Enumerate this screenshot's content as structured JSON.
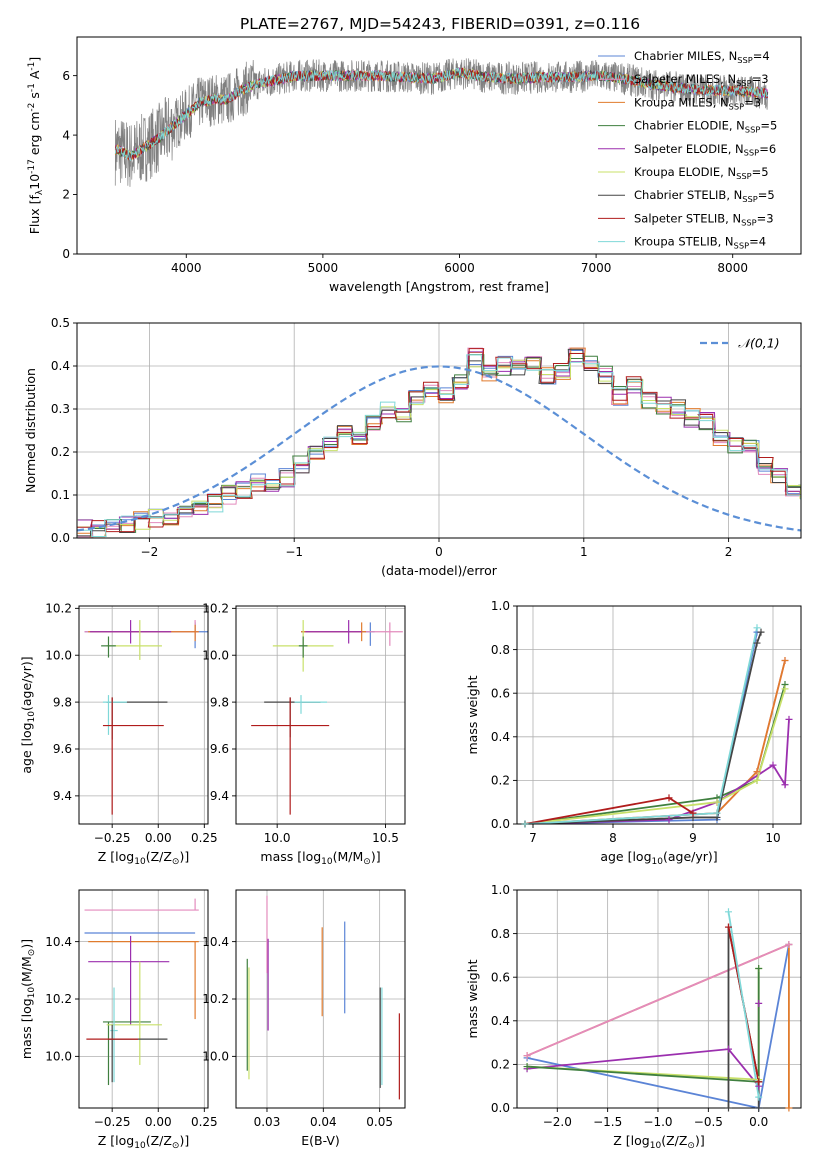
{
  "title": "PLATE=2767, MJD=54243, FIBERID=0391, z=0.116",
  "colors": {
    "Chabrier MILES": "#5b84d6",
    "Salpeter MILES": "#e38bbd",
    "Kroupa MILES": "#e07b2d",
    "Chabrier ELODIE": "#3f7f3f",
    "Salpeter ELODIE": "#9b2fae",
    "Kroupa ELODIE": "#c8e06a",
    "Chabrier STELIB": "#454545",
    "Salpeter STELIB": "#b01c1c",
    "Kroupa STELIB": "#7fd8d8",
    "gauss": "#5b8fd6",
    "grid": "#b0b0b0"
  },
  "chart_data": [
    {
      "id": "spectrum",
      "type": "line",
      "xlabel": "wavelength [Angstrom, rest frame]",
      "ylabel": "Flux [f$_\\lambda$10$^{-17}$ erg cm$^{-2}$ s$^{-1}$ A$^{-1}$]",
      "xlim": [
        3200,
        8500
      ],
      "ylim": [
        0,
        7.3
      ],
      "xticks": [
        4000,
        5000,
        6000,
        7000,
        8000
      ],
      "yticks": [
        0,
        2,
        4,
        6
      ],
      "grid": false,
      "legend_position": "top-right",
      "legend": [
        {
          "name": "Chabrier MILES",
          "nssp": "4"
        },
        {
          "name": "Salpeter MILES",
          "nssp": "3"
        },
        {
          "name": "Kroupa MILES",
          "nssp": "3"
        },
        {
          "name": "Chabrier ELODIE",
          "nssp": "5"
        },
        {
          "name": "Salpeter ELODIE",
          "nssp": "6"
        },
        {
          "name": "Kroupa ELODIE",
          "nssp": "5"
        },
        {
          "name": "Chabrier STELIB",
          "nssp": "5"
        },
        {
          "name": "Salpeter STELIB",
          "nssp": "3"
        },
        {
          "name": "Kroupa STELIB",
          "nssp": "4"
        }
      ],
      "data_color": "#808080",
      "continuum": {
        "x": [
          3500,
          3600,
          3700,
          3800,
          3900,
          4000,
          4100,
          4200,
          4300,
          4400,
          4500,
          4600,
          4700,
          4800,
          5000,
          5200,
          5400,
          5600,
          5800,
          6000,
          6200,
          6400,
          6600,
          6800,
          7000,
          7200,
          7400,
          7600,
          7800,
          8000,
          8250
        ],
        "y": [
          3.5,
          3.3,
          3.6,
          3.9,
          4.3,
          4.7,
          5.1,
          5.2,
          5.2,
          5.5,
          5.7,
          5.8,
          5.9,
          6.0,
          6.0,
          6.0,
          6.0,
          5.95,
          5.9,
          6.1,
          5.95,
          5.9,
          5.95,
          5.95,
          6.0,
          5.9,
          5.7,
          5.6,
          5.5,
          5.5,
          5.4
        ]
      }
    },
    {
      "id": "residuals",
      "type": "line",
      "xlabel": "(data-model)/error",
      "ylabel": "Normed distribution",
      "xlim": [
        -2.5,
        2.5
      ],
      "ylim": [
        0,
        0.5
      ],
      "xticks": [
        -2,
        -1,
        0,
        1,
        2
      ],
      "yticks": [
        0.0,
        0.1,
        0.2,
        0.3,
        0.4,
        0.5
      ],
      "grid": true,
      "legend": [
        "$\\mathcal{N}(0,1)$"
      ],
      "bin_width": 0.1,
      "hist_base": [
        0.02,
        0.025,
        0.03,
        0.035,
        0.04,
        0.045,
        0.05,
        0.055,
        0.07,
        0.08,
        0.1,
        0.11,
        0.13,
        0.12,
        0.14,
        0.17,
        0.2,
        0.22,
        0.24,
        0.23,
        0.27,
        0.3,
        0.28,
        0.33,
        0.34,
        0.33,
        0.36,
        0.42,
        0.38,
        0.4,
        0.4,
        0.41,
        0.38,
        0.39,
        0.42,
        0.41,
        0.38,
        0.33,
        0.36,
        0.32,
        0.31,
        0.3,
        0.28,
        0.27,
        0.23,
        0.22,
        0.21,
        0.17,
        0.15,
        0.12,
        0.11,
        0.09,
        0.08,
        0.07,
        0.06,
        0.07,
        0.06,
        0.05,
        0.04,
        0.05,
        0.04,
        0.035,
        0.04,
        0.03,
        0.03
      ]
    },
    {
      "id": "age-z",
      "type": "scatter",
      "xlabel": "Z [log$_{10}$($Z/Z_\\odot$)]",
      "ylabel": "age  [log$_{10}$($age/yr$)]",
      "xlim": [
        -0.43,
        0.27
      ],
      "ylim": [
        9.28,
        10.21
      ],
      "xticks": [
        -0.25,
        0.0,
        0.25
      ],
      "yticks": [
        9.4,
        9.6,
        9.8,
        10.0,
        10.2
      ],
      "grid": true,
      "errorbars": [
        {
          "s": "Chabrier MILES",
          "x": 0.2,
          "y": 10.1,
          "xl": 0.6,
          "xh": 0.2,
          "yl": 0.07,
          "yh": 0.04
        },
        {
          "s": "Salpeter MILES",
          "x": 0.2,
          "y": 10.1,
          "xl": 0.6,
          "xh": 0.02,
          "yl": 0.03,
          "yh": 0.05
        },
        {
          "s": "Kroupa MILES",
          "x": 0.2,
          "y": 10.1,
          "xl": 0.58,
          "xh": 0.02,
          "yl": 0.04,
          "yh": 0.03
        },
        {
          "s": "Salpeter ELODIE",
          "x": -0.15,
          "y": 10.1,
          "xl": 0.22,
          "xh": 0.22,
          "yl": 0.05,
          "yh": 0.05
        },
        {
          "s": "Kroupa ELODIE",
          "x": -0.1,
          "y": 10.04,
          "xl": 0.18,
          "xh": 0.12,
          "yl": 0.06,
          "yh": 0.11
        },
        {
          "s": "Chabrier ELODIE",
          "x": -0.27,
          "y": 10.04,
          "xl": 0.04,
          "xh": 0.04,
          "yl": 0.05,
          "yh": 0.04
        },
        {
          "s": "Chabrier STELIB",
          "x": -0.25,
          "y": 9.8,
          "xl": 0.03,
          "xh": 0.3,
          "yl": 0.16,
          "yh": 0.02
        },
        {
          "s": "Kroupa STELIB",
          "x": -0.27,
          "y": 9.8,
          "xl": 0.03,
          "xh": 0.1,
          "yl": 0.14,
          "yh": 0.03
        },
        {
          "s": "Salpeter STELIB",
          "x": -0.25,
          "y": 9.7,
          "xl": 0.05,
          "xh": 0.28,
          "yl": 0.38,
          "yh": 0.12
        }
      ]
    },
    {
      "id": "age-mass",
      "type": "scatter",
      "xlabel": "mass [log$_{10}$($M/M_\\odot$)]",
      "ylabel": "",
      "xlim": [
        9.81,
        10.59
      ],
      "ylim": [
        9.28,
        10.21
      ],
      "xticks": [
        10.0,
        10.5
      ],
      "yticks": [
        9.4,
        9.6,
        9.8,
        10.0,
        10.2
      ],
      "grid": true,
      "errorbars": [
        {
          "s": "Chabrier MILES",
          "x": 10.43,
          "y": 10.1,
          "xl": 0.32,
          "xh": 0.02,
          "yl": 0.06,
          "yh": 0.04
        },
        {
          "s": "Salpeter MILES",
          "x": 10.52,
          "y": 10.1,
          "xl": 0.4,
          "xh": 0.06,
          "yl": 0.06,
          "yh": 0.04
        },
        {
          "s": "Kroupa MILES",
          "x": 10.39,
          "y": 10.1,
          "xl": 0.28,
          "xh": 0.02,
          "yl": 0.04,
          "yh": 0.04
        },
        {
          "s": "Salpeter ELODIE",
          "x": 10.33,
          "y": 10.1,
          "xl": 0.2,
          "xh": 0.06,
          "yl": 0.05,
          "yh": 0.05
        },
        {
          "s": "Kroupa ELODIE",
          "x": 10.12,
          "y": 10.04,
          "xl": 0.14,
          "xh": 0.14,
          "yl": 0.11,
          "yh": 0.11
        },
        {
          "s": "Chabrier ELODIE",
          "x": 10.12,
          "y": 10.04,
          "xl": 0.02,
          "xh": 0.02,
          "yl": 0.05,
          "yh": 0.04
        },
        {
          "s": "Chabrier STELIB",
          "x": 10.06,
          "y": 9.8,
          "xl": 0.12,
          "xh": 0.14,
          "yl": 0.15,
          "yh": 0.02
        },
        {
          "s": "Kroupa STELIB",
          "x": 10.11,
          "y": 9.8,
          "xl": 0.03,
          "xh": 0.12,
          "yl": 0.05,
          "yh": 0.03
        },
        {
          "s": "Salpeter STELIB",
          "x": 10.06,
          "y": 9.7,
          "xl": 0.18,
          "xh": 0.18,
          "yl": 0.38,
          "yh": 0.12
        }
      ]
    },
    {
      "id": "mass-weight-age",
      "type": "line",
      "xlabel": "age  [log$_{10}$($age/yr$)]",
      "ylabel": "mass weight",
      "xlim": [
        6.8,
        10.35
      ],
      "ylim": [
        0,
        1.0
      ],
      "xticks": [
        7,
        8,
        9,
        10
      ],
      "yticks": [
        0.0,
        0.2,
        0.4,
        0.6,
        0.8,
        1.0
      ],
      "grid": true,
      "series": [
        {
          "s": "Chabrier MILES",
          "x": [
            6.9,
            9.3,
            9.8
          ],
          "y": [
            0.0,
            0.02,
            0.88
          ]
        },
        {
          "s": "Salpeter MILES",
          "x": [
            6.9,
            9.3,
            9.8,
            10.15
          ],
          "y": [
            0.0,
            0.05,
            0.24,
            0.75
          ]
        },
        {
          "s": "Kroupa MILES",
          "x": [
            6.9,
            9.3,
            9.8,
            10.15
          ],
          "y": [
            0.0,
            0.05,
            0.24,
            0.75
          ]
        },
        {
          "s": "Chabrier ELODIE",
          "x": [
            6.9,
            9.3,
            9.8,
            10.15
          ],
          "y": [
            0.0,
            0.12,
            0.2,
            0.64
          ]
        },
        {
          "s": "Salpeter ELODIE",
          "x": [
            6.9,
            8.7,
            9.3,
            10.0,
            10.15,
            10.2
          ],
          "y": [
            0.0,
            0.02,
            0.1,
            0.27,
            0.18,
            0.48
          ]
        },
        {
          "s": "Kroupa ELODIE",
          "x": [
            6.9,
            9.3,
            9.8,
            10.15
          ],
          "y": [
            0.0,
            0.1,
            0.2,
            0.62
          ]
        },
        {
          "s": "Chabrier STELIB",
          "x": [
            6.9,
            9.0,
            9.3,
            9.8,
            9.85
          ],
          "y": [
            0.0,
            0.03,
            0.03,
            0.83,
            0.88
          ]
        },
        {
          "s": "Salpeter STELIB",
          "x": [
            6.9,
            8.7,
            9.0
          ],
          "y": [
            0.0,
            0.12,
            0.05
          ]
        },
        {
          "s": "Kroupa STELIB",
          "x": [
            6.9,
            9.3,
            9.8
          ],
          "y": [
            0.0,
            0.05,
            0.9
          ]
        }
      ]
    },
    {
      "id": "mass-z",
      "type": "scatter",
      "xlabel": "Z [log$_{10}$($Z/Z_\\odot$)]",
      "ylabel": "mass [log$_{10}$($M/M_\\odot$)]",
      "xlim": [
        -0.43,
        0.27
      ],
      "ylim": [
        9.82,
        10.58
      ],
      "xticks": [
        -0.25,
        0.0,
        0.25
      ],
      "yticks": [
        10.0,
        10.2,
        10.4
      ],
      "grid": true,
      "errorbars": [
        {
          "s": "Salpeter MILES",
          "x": 0.2,
          "y": 10.51,
          "xl": 0.6,
          "xh": 0.02,
          "yl": 0.0,
          "yh": 0.04
        },
        {
          "s": "Chabrier MILES",
          "x": 0.2,
          "y": 10.43,
          "xl": 0.6,
          "xh": 0.0,
          "yl": 0.0,
          "yh": 0.0
        },
        {
          "s": "Kroupa MILES",
          "x": 0.2,
          "y": 10.4,
          "xl": 0.58,
          "xh": 0.02,
          "yl": 0.27,
          "yh": 0.0
        },
        {
          "s": "Salpeter ELODIE",
          "x": -0.15,
          "y": 10.33,
          "xl": 0.23,
          "xh": 0.21,
          "yl": 0.22,
          "yh": 0.09
        },
        {
          "s": "Chabrier ELODIE",
          "x": -0.27,
          "y": 10.12,
          "xl": 0.03,
          "xh": 0.23,
          "yl": 0.22,
          "yh": 0.0
        },
        {
          "s": "Kroupa ELODIE",
          "x": -0.1,
          "y": 10.11,
          "xl": 0.18,
          "xh": 0.12,
          "yl": 0.14,
          "yh": 0.22
        },
        {
          "s": "Kroupa STELIB",
          "x": -0.24,
          "y": 10.09,
          "xl": 0.02,
          "xh": 0.02,
          "yl": 0.18,
          "yh": 0.15
        },
        {
          "s": "Chabrier STELIB",
          "x": -0.25,
          "y": 10.06,
          "xl": 0.02,
          "xh": 0.3,
          "yl": 0.15,
          "yh": 0.05
        },
        {
          "s": "Salpeter STELIB",
          "x": -0.25,
          "y": 10.06,
          "xl": 0.14,
          "xh": 0.14,
          "yl": 0.0,
          "yh": 0.0
        }
      ]
    },
    {
      "id": "mass-ebv",
      "type": "scatter",
      "xlabel": "E(B-V)",
      "ylabel": "",
      "xlim": [
        0.0245,
        0.0545
      ],
      "ylim": [
        9.82,
        10.58
      ],
      "xticks": [
        0.03,
        0.04,
        0.05
      ],
      "yticks": [
        10.0,
        10.2,
        10.4
      ],
      "grid": true,
      "errorbars": [
        {
          "s": "Chabrier ELODIE",
          "x": 0.0265,
          "y": 10.13,
          "xl": 0,
          "xh": 0,
          "yl": 0.18,
          "yh": 0.21
        },
        {
          "s": "Kroupa ELODIE",
          "x": 0.0268,
          "y": 10.1,
          "xl": 0,
          "xh": 0,
          "yl": 0.18,
          "yh": 0.21
        },
        {
          "s": "Salpeter MILES",
          "x": 0.03,
          "y": 10.35,
          "xl": 0,
          "xh": 0,
          "yl": 0.06,
          "yh": 0.21
        },
        {
          "s": "Salpeter ELODIE",
          "x": 0.0302,
          "y": 10.25,
          "xl": 0,
          "xh": 0,
          "yl": 0.16,
          "yh": 0.16
        },
        {
          "s": "Kroupa MILES",
          "x": 0.0398,
          "y": 10.29,
          "xl": 0,
          "xh": 0,
          "yl": 0.15,
          "yh": 0.16
        },
        {
          "s": "Chabrier MILES",
          "x": 0.0438,
          "y": 10.31,
          "xl": 0,
          "xh": 0,
          "yl": 0.16,
          "yh": 0.16
        },
        {
          "s": "Chabrier STELIB",
          "x": 0.0501,
          "y": 10.07,
          "xl": 0,
          "xh": 0,
          "yl": 0.18,
          "yh": 0.17
        },
        {
          "s": "Kroupa STELIB",
          "x": 0.0504,
          "y": 10.07,
          "xl": 0,
          "xh": 0,
          "yl": 0.17,
          "yh": 0.17
        },
        {
          "s": "Salpeter STELIB",
          "x": 0.0535,
          "y": 10.0,
          "xl": 0,
          "xh": 0,
          "yl": 0.15,
          "yh": 0.15
        }
      ]
    },
    {
      "id": "mass-weight-z",
      "type": "line",
      "xlabel": "Z [log$_{10}$($Z/Z_\\odot$)]",
      "ylabel": "mass weight",
      "xlim": [
        -2.4,
        0.42
      ],
      "ylim": [
        0,
        1.0
      ],
      "xticks": [
        -2.0,
        -1.5,
        -1.0,
        -0.5,
        0.0
      ],
      "yticks": [
        0.0,
        0.2,
        0.4,
        0.6,
        0.8,
        1.0
      ],
      "grid": true,
      "series": [
        {
          "s": "Chabrier MILES",
          "x": [
            -2.3,
            0.0,
            0.3
          ],
          "y": [
            0.23,
            0.0,
            0.75
          ]
        },
        {
          "s": "Kroupa MILES",
          "x": [
            -2.3,
            0.3,
            0.3
          ],
          "y": [
            0.24,
            0.75,
            0.0
          ]
        },
        {
          "s": "Salpeter MILES",
          "x": [
            -2.3,
            0.3
          ],
          "y": [
            0.24,
            0.75
          ]
        },
        {
          "s": "Salpeter ELODIE",
          "x": [
            -2.3,
            -0.3,
            0.0,
            0.0
          ],
          "y": [
            0.18,
            0.27,
            0.1,
            0.48
          ]
        },
        {
          "s": "Kroupa ELODIE",
          "x": [
            -2.3,
            0.0,
            0.0
          ],
          "y": [
            0.19,
            0.13,
            0.64
          ]
        },
        {
          "s": "Chabrier ELODIE",
          "x": [
            -2.3,
            0.0,
            0.0
          ],
          "y": [
            0.19,
            0.12,
            0.64
          ]
        },
        {
          "s": "Chabrier STELIB",
          "x": [
            -0.3,
            -0.3,
            0.0,
            0.0
          ],
          "y": [
            0.0,
            0.83,
            0.12,
            0.0
          ]
        },
        {
          "s": "Salpeter STELIB",
          "x": [
            -0.3,
            0.0
          ],
          "y": [
            0.83,
            0.12
          ]
        },
        {
          "s": "Kroupa STELIB",
          "x": [
            -0.3,
            0.0
          ],
          "y": [
            0.9,
            0.05
          ]
        }
      ]
    }
  ]
}
